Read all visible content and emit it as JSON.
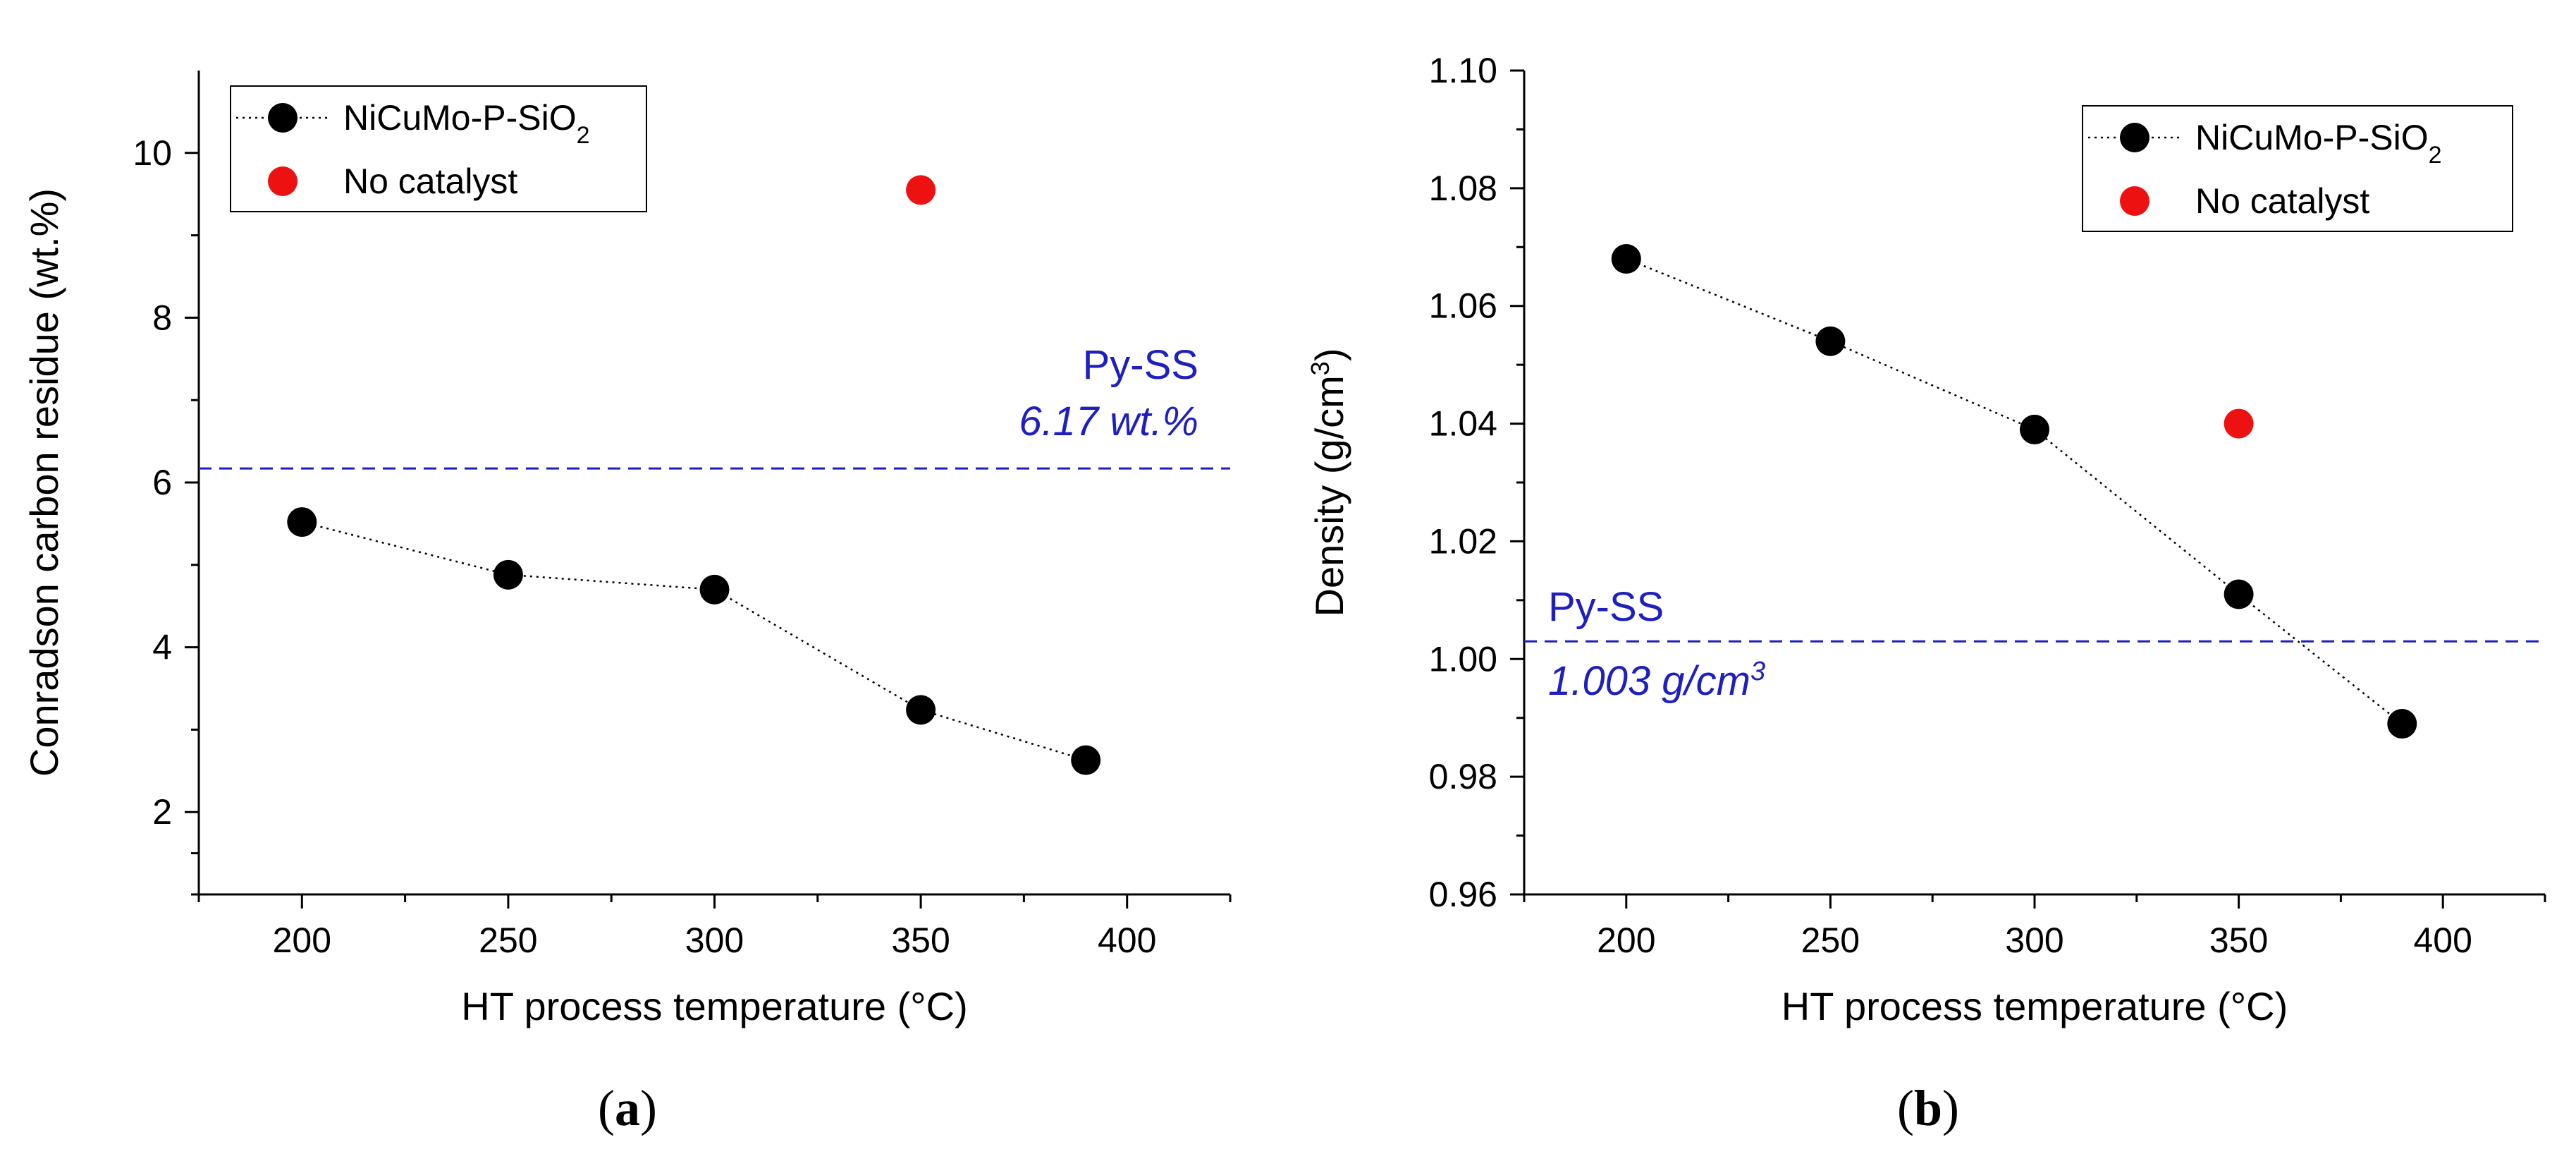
{
  "chart_data": [
    {
      "panel": "a",
      "type": "scatter",
      "caption_open": "(",
      "caption_letter": "a",
      "caption_close": ")",
      "xlabel": "HT process temperature (°C)",
      "ylabel": "Conradson carbon residue (wt.%)",
      "xlim": [
        175,
        425
      ],
      "ylim": [
        1,
        11
      ],
      "xticks": [
        200,
        250,
        300,
        350,
        400
      ],
      "yticks": [
        2,
        4,
        6,
        8,
        10
      ],
      "series": [
        {
          "name": "NiCuMo-P-SiO2",
          "legend_main": "NiCuMo-P-SiO",
          "legend_sub": "2",
          "color": "#000000",
          "line": "dotted",
          "x": [
            200,
            250,
            300,
            350,
            390
          ],
          "y": [
            5.52,
            4.88,
            4.7,
            3.24,
            2.63
          ]
        },
        {
          "name": "No catalyst",
          "legend_main": "No catalyst",
          "legend_sub": "",
          "color": "#ee1111",
          "line": "none",
          "x": [
            350
          ],
          "y": [
            9.55
          ]
        }
      ],
      "reference": {
        "y": 6.17,
        "label": "Py-SS",
        "value_text": "6.17 wt.%",
        "value_sup": "",
        "color": "#1f1fbf"
      }
    },
    {
      "panel": "b",
      "type": "scatter",
      "caption_open": "(",
      "caption_letter": "b",
      "caption_close": ")",
      "xlabel": "HT process temperature (°C)",
      "ylabel_main": "Density (g/cm",
      "ylabel_sup": "3",
      "ylabel_end": ")",
      "xlim": [
        175,
        425
      ],
      "ylim": [
        0.96,
        1.1
      ],
      "xticks": [
        200,
        250,
        300,
        350,
        400
      ],
      "yticks": [
        0.96,
        0.98,
        1.0,
        1.02,
        1.04,
        1.06,
        1.08,
        1.1
      ],
      "ytick_labels": [
        "0.96",
        "0.98",
        "1.00",
        "1.02",
        "1.04",
        "1.06",
        "1.08",
        "1.10"
      ],
      "series": [
        {
          "name": "NiCuMo-P-SiO2",
          "legend_main": "NiCuMo-P-SiO",
          "legend_sub": "2",
          "color": "#000000",
          "line": "dotted",
          "x": [
            200,
            250,
            300,
            350,
            390
          ],
          "y": [
            1.068,
            1.054,
            1.039,
            1.011,
            0.989
          ]
        },
        {
          "name": "No catalyst",
          "legend_main": "No catalyst",
          "legend_sub": "",
          "color": "#ee1111",
          "line": "none",
          "x": [
            350
          ],
          "y": [
            1.04
          ]
        }
      ],
      "reference": {
        "y": 1.003,
        "label": "Py-SS",
        "value_text": "1.003 g/cm",
        "value_sup": "3",
        "color": "#1f1fbf"
      }
    }
  ]
}
